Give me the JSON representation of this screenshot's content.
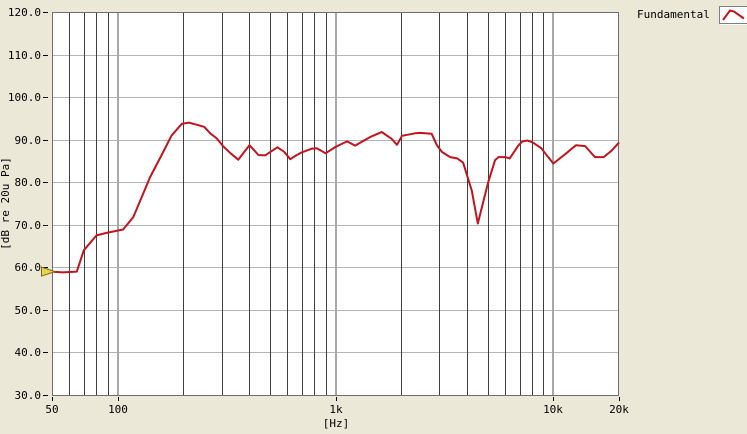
{
  "window": {
    "background": "#ebe8d8"
  },
  "legend": {
    "label": "Fundamental",
    "icon": "peak-curve-icon"
  },
  "chart_data": {
    "type": "line",
    "title": "",
    "xlabel": "[Hz]",
    "ylabel": "[dB re 20u Pa]",
    "x_scale": "log",
    "xlim": [
      50,
      20000
    ],
    "ylim": [
      30,
      120
    ],
    "grid": true,
    "legend_position": "top-right",
    "plot_background": "#ffffff",
    "border_color": "#6e6e6e",
    "tick_color": "#000000",
    "grid_colors": {
      "horizontal": "#b4b4b4",
      "minor_vertical": "#3f3f3f",
      "major_vertical": "#a8a8a8"
    },
    "y_ticks": [
      {
        "value": 120,
        "label": "120.0"
      },
      {
        "value": 110,
        "label": "110.0"
      },
      {
        "value": 100,
        "label": "100.0"
      },
      {
        "value": 90,
        "label": "90.0"
      },
      {
        "value": 80,
        "label": "80.0"
      },
      {
        "value": 70,
        "label": "70.0"
      },
      {
        "value": 60,
        "label": "60.0"
      },
      {
        "value": 50,
        "label": "50.0"
      },
      {
        "value": 40,
        "label": "40.0"
      },
      {
        "value": 30,
        "label": "30.0"
      }
    ],
    "x_ticks": [
      {
        "value": 50,
        "label": "50"
      },
      {
        "value": 100,
        "label": "100"
      },
      {
        "value": 1000,
        "label": "1k"
      },
      {
        "value": 10000,
        "label": "10k"
      },
      {
        "value": 20000,
        "label": "20k"
      }
    ],
    "x_minor_gridlines": [
      60,
      70,
      80,
      90,
      200,
      300,
      400,
      500,
      600,
      700,
      800,
      900,
      2000,
      3000,
      4000,
      5000,
      6000,
      7000,
      8000,
      9000
    ],
    "x_major_gridlines": [
      100,
      1000,
      10000
    ],
    "start_marker": {
      "shape": "right-triangle",
      "color": "#e9d34b",
      "outline": "#7c6d15",
      "at": [
        50,
        59.0
      ]
    },
    "series": [
      {
        "name": "Fundamental",
        "color": "#c3141e",
        "points": [
          [
            50,
            59.0
          ],
          [
            56,
            58.8
          ],
          [
            65,
            59.0
          ],
          [
            70,
            64.0
          ],
          [
            80,
            67.5
          ],
          [
            89,
            68.1
          ],
          [
            106,
            68.9
          ],
          [
            118,
            71.8
          ],
          [
            141,
            81.2
          ],
          [
            162,
            87.1
          ],
          [
            177,
            91.0
          ],
          [
            197,
            93.7
          ],
          [
            212,
            94.0
          ],
          [
            235,
            93.4
          ],
          [
            250,
            93.0
          ],
          [
            266,
            91.5
          ],
          [
            285,
            90.3
          ],
          [
            306,
            88.4
          ],
          [
            330,
            86.8
          ],
          [
            358,
            85.3
          ],
          [
            380,
            87.0
          ],
          [
            403,
            88.7
          ],
          [
            443,
            86.4
          ],
          [
            475,
            86.3
          ],
          [
            541,
            88.2
          ],
          [
            580,
            87.2
          ],
          [
            620,
            85.4
          ],
          [
            660,
            86.3
          ],
          [
            700,
            87.0
          ],
          [
            780,
            87.9
          ],
          [
            820,
            88.0
          ],
          [
            860,
            87.4
          ],
          [
            900,
            86.8
          ],
          [
            1000,
            88.3
          ],
          [
            1130,
            89.6
          ],
          [
            1230,
            88.6
          ],
          [
            1440,
            90.6
          ],
          [
            1630,
            91.8
          ],
          [
            1810,
            90.2
          ],
          [
            1915,
            88.8
          ],
          [
            2020,
            90.9
          ],
          [
            2320,
            91.5
          ],
          [
            2450,
            91.6
          ],
          [
            2760,
            91.4
          ],
          [
            2920,
            88.7
          ],
          [
            3080,
            87.1
          ],
          [
            3360,
            85.9
          ],
          [
            3620,
            85.6
          ],
          [
            3850,
            84.6
          ],
          [
            4220,
            78.0
          ],
          [
            4500,
            70.3
          ],
          [
            5020,
            80.0
          ],
          [
            5400,
            85.2
          ],
          [
            5600,
            85.9
          ],
          [
            6000,
            85.9
          ],
          [
            6300,
            85.6
          ],
          [
            6900,
            88.6
          ],
          [
            7200,
            89.6
          ],
          [
            7600,
            89.8
          ],
          [
            8000,
            89.4
          ],
          [
            8800,
            88.0
          ],
          [
            9400,
            86.1
          ],
          [
            10000,
            84.4
          ],
          [
            11400,
            86.7
          ],
          [
            12700,
            88.7
          ],
          [
            14000,
            88.5
          ],
          [
            15500,
            85.9
          ],
          [
            17000,
            85.9
          ],
          [
            18500,
            87.4
          ],
          [
            19900,
            89.2
          ]
        ]
      }
    ]
  }
}
